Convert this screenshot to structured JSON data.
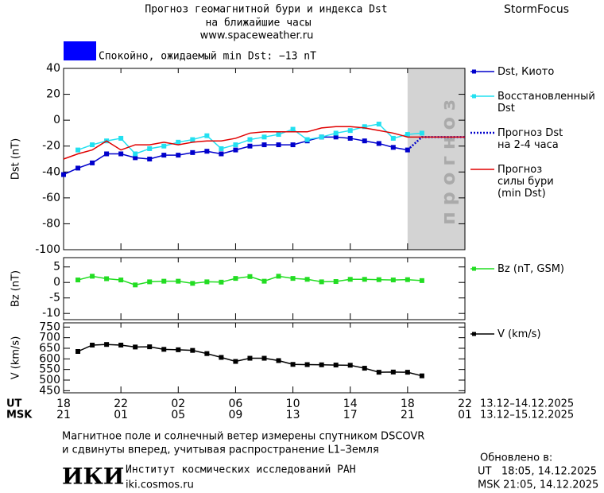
{
  "header": {
    "title_line1": "Прогноз геомагнитной бури и индекса Dst",
    "title_line2": "на ближайшие часы",
    "website": "www.spaceweather.ru",
    "brand": "StormFocus"
  },
  "status": {
    "text": "Спокойно, ожидаемый min Dst: −13 nT",
    "color": "#0000ff"
  },
  "chart_data": [
    {
      "type": "line",
      "ylabel": "Dst (nT)",
      "x": [
        0,
        1,
        2,
        3,
        4,
        5,
        6,
        7,
        8,
        9,
        10,
        11,
        12,
        13,
        14,
        15,
        16,
        17,
        18,
        19,
        20,
        21,
        22,
        23,
        24,
        25,
        26,
        27,
        28
      ],
      "xlim": [
        0,
        28
      ],
      "xticks": [
        0,
        4,
        8,
        12,
        16,
        20,
        24,
        28
      ],
      "ylim": [
        -100,
        40
      ],
      "yticks": [
        -100,
        -80,
        -60,
        -40,
        -20,
        0,
        20,
        40
      ],
      "forecast_band": {
        "xlim": [
          24,
          28
        ],
        "label": "прогноз",
        "color": "#d3d3d3"
      },
      "series": [
        {
          "name": "Dst, Киото",
          "color": "#0000cc",
          "marker": true,
          "dotted": false,
          "values": [
            -42,
            -37,
            -33,
            -26,
            -26,
            -29,
            -30,
            -27,
            -27,
            -25,
            -24,
            -26,
            -23,
            -20,
            -19,
            -19,
            -19,
            -16,
            -13,
            -13,
            -14,
            -16,
            -18,
            -21,
            -23,
            null,
            null,
            null,
            null
          ]
        },
        {
          "name": "Восстановленный\nDst",
          "color": "#22e0f0",
          "marker": true,
          "dotted": false,
          "values": [
            null,
            -23,
            -19,
            -16,
            -14,
            -26,
            -22,
            -20,
            -17,
            -15,
            -12,
            -22,
            -19,
            -15,
            -13,
            -11,
            -7,
            -15,
            -13,
            -10,
            -8,
            -5,
            -3,
            -14,
            -11,
            -10,
            null,
            null,
            null
          ]
        },
        {
          "name": "Прогноз Dst\nна 2-4 часа",
          "color": "#0000cc",
          "marker": false,
          "dotted": true,
          "values": [
            null,
            null,
            null,
            null,
            null,
            null,
            null,
            null,
            null,
            null,
            null,
            null,
            null,
            null,
            null,
            null,
            null,
            null,
            null,
            null,
            null,
            null,
            null,
            null,
            -23,
            -13,
            -13,
            -13,
            -13
          ]
        },
        {
          "name": "Прогноз\nсилы бури\n(min Dst)",
          "color": "#e00000",
          "marker": false,
          "dotted": false,
          "values": [
            -30,
            -26,
            -23,
            -16,
            -23,
            -19,
            -19,
            -17,
            -19,
            -17,
            -16,
            -16,
            -14,
            -10,
            -9,
            -9,
            -9,
            -9,
            -6,
            -5,
            -5,
            -6,
            -8,
            -10,
            -13,
            -13,
            -13,
            -13,
            -13
          ]
        }
      ]
    },
    {
      "type": "line",
      "ylabel": "Bz (nT)",
      "x": [
        0,
        1,
        2,
        3,
        4,
        5,
        6,
        7,
        8,
        9,
        10,
        11,
        12,
        13,
        14,
        15,
        16,
        17,
        18,
        19,
        20,
        21,
        22,
        23,
        24,
        25,
        26,
        27,
        28
      ],
      "xlim": [
        0,
        28
      ],
      "xticks": [
        0,
        4,
        8,
        12,
        16,
        20,
        24,
        28
      ],
      "ylim": [
        -12,
        8
      ],
      "yticks": [
        -10,
        -5,
        0,
        5
      ],
      "series": [
        {
          "name": "Bz (nT, GSM)",
          "color": "#22dd22",
          "marker": true,
          "dotted": false,
          "values": [
            null,
            0.8,
            2,
            1.2,
            0.8,
            -0.8,
            0.2,
            0.4,
            0.4,
            -0.3,
            0.2,
            0.1,
            1.3,
            1.9,
            0.4,
            2,
            1.3,
            1,
            0.2,
            0.3,
            1,
            1,
            0.9,
            0.8,
            0.9,
            0.6,
            null,
            null,
            null
          ]
        }
      ]
    },
    {
      "type": "line",
      "ylabel": "V (km/s)",
      "x": [
        0,
        1,
        2,
        3,
        4,
        5,
        6,
        7,
        8,
        9,
        10,
        11,
        12,
        13,
        14,
        15,
        16,
        17,
        18,
        19,
        20,
        21,
        22,
        23,
        24,
        25,
        26,
        27,
        28
      ],
      "xlim": [
        0,
        28
      ],
      "ylim": [
        440,
        770
      ],
      "yticks": [
        450,
        500,
        550,
        600,
        650,
        700,
        750
      ],
      "xticks": [
        {
          "value": 0,
          "label": "18"
        },
        {
          "value": 4,
          "label": "22"
        },
        {
          "value": 8,
          "label": "02"
        },
        {
          "value": 12,
          "label": "06"
        },
        {
          "value": 16,
          "label": "10"
        },
        {
          "value": 20,
          "label": "14"
        },
        {
          "value": 24,
          "label": "18"
        },
        {
          "value": 28,
          "label": "22"
        }
      ],
      "xticks_msk": [
        {
          "value": 0,
          "label": "21"
        },
        {
          "value": 4,
          "label": "01"
        },
        {
          "value": 8,
          "label": "05"
        },
        {
          "value": 12,
          "label": "09"
        },
        {
          "value": 16,
          "label": "13"
        },
        {
          "value": 20,
          "label": "17"
        },
        {
          "value": 24,
          "label": "21"
        },
        {
          "value": 28,
          "label": "01"
        }
      ],
      "xrow_label": "UT",
      "xrow_range": "13.12–14.12.2025",
      "xrow_msk_label": "MSK",
      "xrow_msk_range": "13.12–15.12.2025",
      "series": [
        {
          "name": "V (km/s)",
          "color": "#000000",
          "marker": true,
          "dotted": false,
          "values": [
            null,
            635,
            665,
            668,
            665,
            656,
            657,
            645,
            643,
            640,
            625,
            607,
            588,
            603,
            603,
            592,
            574,
            573,
            572,
            571,
            570,
            556,
            537,
            538,
            537,
            520,
            null,
            null,
            null
          ]
        }
      ]
    }
  ],
  "footer": {
    "note_line1": "Магнитное поле и солнечный ветер измерены спутником DSCOVR",
    "note_line2": "и сдвинуты вперед, учитывая распространение L1–Земля",
    "logo": "ИКИ",
    "institute": "Институт космических исследований РАН",
    "institute_site": "iki.cosmos.ru",
    "updated_label": "Обновлено в:",
    "updated_ut": "UT   18:05, 14.12.2025",
    "updated_msk": "MSK 21:05, 14.12.2025"
  }
}
